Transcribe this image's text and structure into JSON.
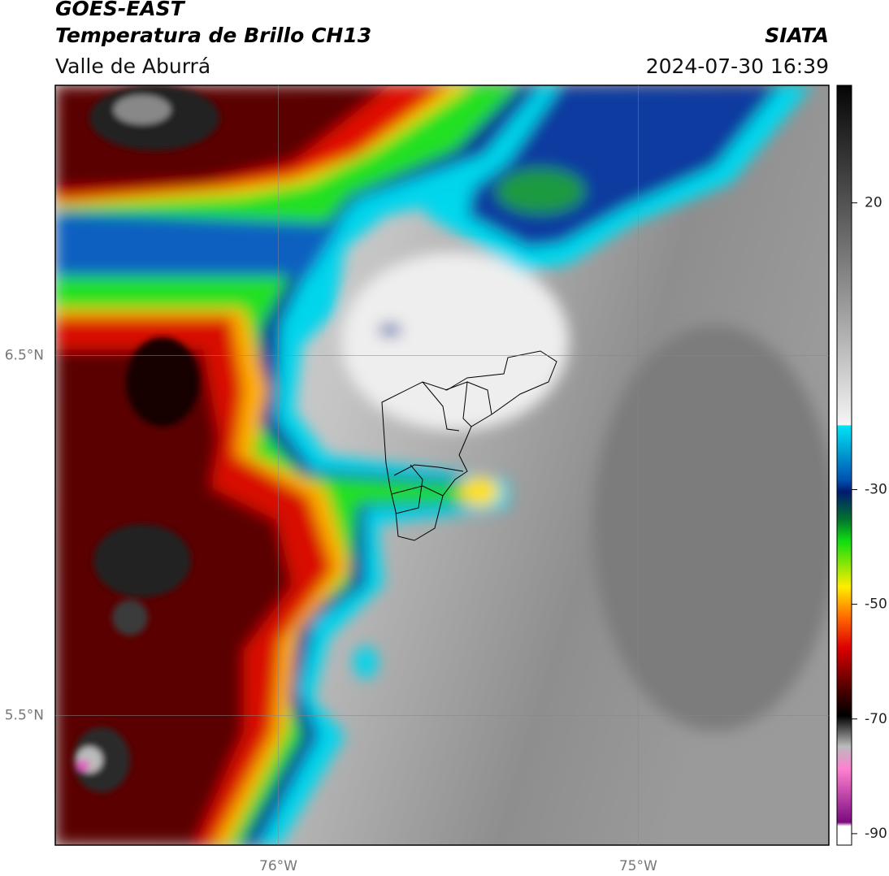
{
  "header": {
    "title": "GOES-EAST",
    "subtitle": "Temperatura de Brillo CH13",
    "region": "Valle de Aburrá",
    "source": "SIATA",
    "datetime": "2024-07-30 16:39"
  },
  "map": {
    "lonlim": [
      -76.62,
      -74.47
    ],
    "latlim": [
      5.14,
      7.25
    ],
    "lonticks": [
      {
        "value": -76,
        "label": "76°W"
      },
      {
        "value": -75,
        "label": "75°W"
      }
    ],
    "latticks": [
      {
        "value": 6.5,
        "label": "6.5°N"
      },
      {
        "value": 5.5,
        "label": "5.5°N"
      }
    ]
  },
  "colorbar": {
    "lim": [
      -92,
      40.5
    ],
    "ticks": [
      20,
      -30,
      -50,
      -70,
      -90
    ]
  }
}
